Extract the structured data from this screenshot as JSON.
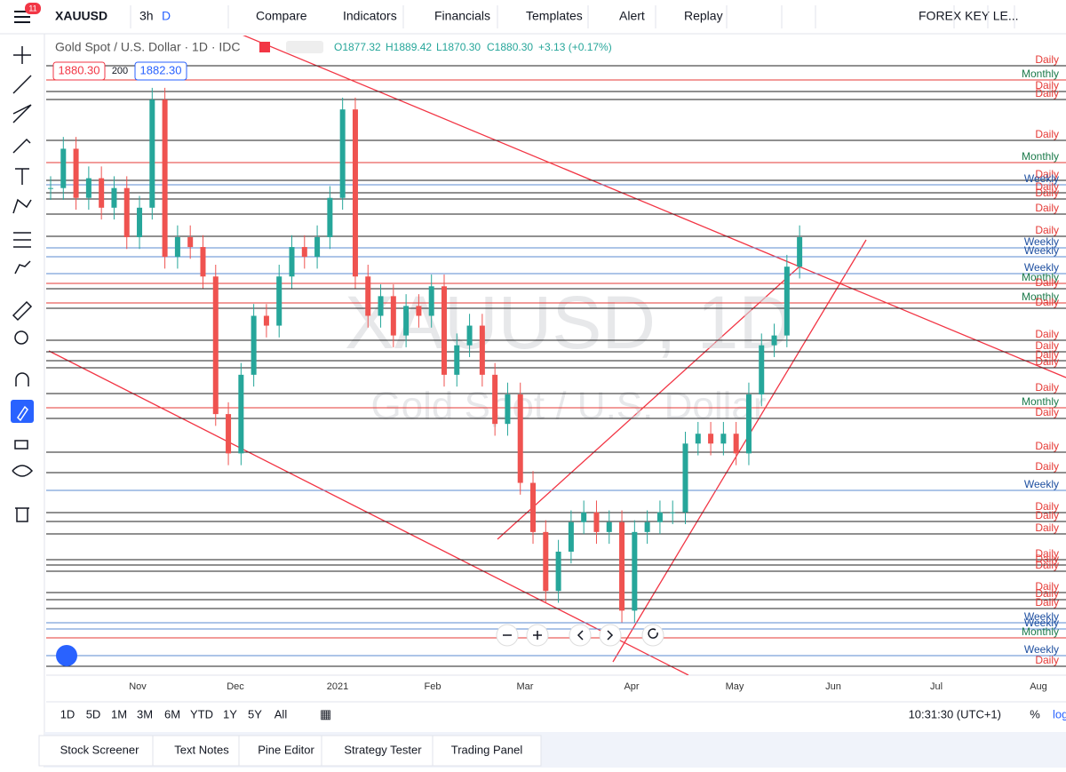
{
  "toolbar": {
    "badge": "11",
    "symbol": "XAUUSD",
    "interval": "3h",
    "interval_active": "D",
    "buttons": [
      "Compare",
      "Indicators",
      "Financials",
      "Templates",
      "Alert",
      "Replay"
    ],
    "layout": "FOREX KEY LE..."
  },
  "legend": {
    "title": "Gold Spot / U.S. Dollar · 1D · IDC",
    "open": "O1877.32",
    "high": "H1889.42",
    "low": "L1870.30",
    "close": "C1880.30",
    "change": "+3.13 (+0.17%)",
    "bid": "1880.30",
    "spread": "200",
    "ask": "1882.30"
  },
  "watermark": {
    "symbol": "XAUUSD, 1D",
    "name": "Gold Spot / U.S. Dollar"
  },
  "candles": {
    "close": [
      1905,
      1925,
      1900,
      1910,
      1895,
      1905,
      1880,
      1895,
      1950,
      1870,
      1880,
      1875,
      1860,
      1790,
      1770,
      1810,
      1840,
      1835,
      1860,
      1875,
      1870,
      1880,
      1900,
      1945,
      1860,
      1840,
      1850,
      1830,
      1845,
      1840,
      1855,
      1810,
      1825,
      1835,
      1810,
      1785,
      1800,
      1755,
      1730,
      1700,
      1720,
      1735,
      1740,
      1730,
      1735,
      1690,
      1730,
      1735,
      1740,
      1740,
      1775,
      1780,
      1775,
      1780,
      1770,
      1800,
      1825,
      1830,
      1865,
      1880
    ]
  },
  "levels": [
    "Daily",
    "Monthly",
    "Daily",
    "Daily",
    "Daily",
    "Monthly",
    "Daily",
    "Weekly",
    "Daily",
    "Daily",
    "Daily",
    "Daily",
    "Weekly",
    "Weekly",
    "Weekly",
    "Monthly",
    "Daily",
    "Monthly",
    "Daily",
    "Daily",
    "Daily",
    "Daily",
    "Daily",
    "Daily",
    "Monthly",
    "Daily",
    "Daily",
    "Daily",
    "Weekly",
    "Daily",
    "Daily",
    "Daily",
    "Daily",
    "Daily",
    "Daily",
    "Daily",
    "Daily",
    "Daily",
    "Weekly",
    "Weekly",
    "Monthly",
    "Weekly",
    "Daily"
  ],
  "xaxis": [
    "Nov",
    "Dec",
    "2021",
    "Feb",
    "Mar",
    "Apr",
    "May",
    "Jun",
    "Jul",
    "Aug"
  ],
  "ranges": [
    "1D",
    "5D",
    "1M",
    "3M",
    "6M",
    "YTD",
    "1Y",
    "5Y",
    "All"
  ],
  "clock": "10:31:30 (UTC+1)",
  "percent": "%",
  "log": "log",
  "tabs": [
    "Stock Screener",
    "Text Notes",
    "Pine Editor",
    "Strategy Tester",
    "Trading Panel"
  ]
}
